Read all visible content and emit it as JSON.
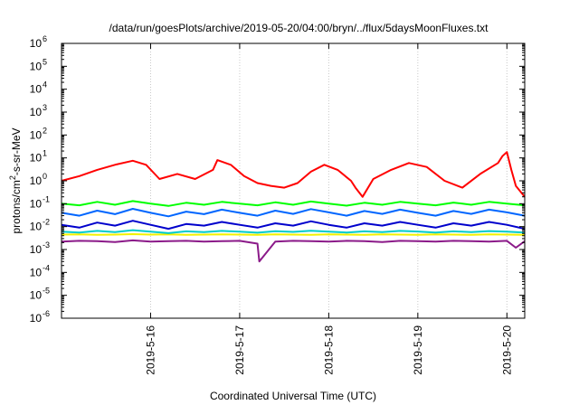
{
  "chart_data": {
    "type": "line",
    "title": "/data/run/goesPlots/archive/2019-05-20/04:00/bryn/../flux/5daysMoonFluxes.txt",
    "xlabel": "Coordinated Universal Time (UTC)",
    "ylabel": {
      "prefix": "protons/cm",
      "sup": "2",
      "suffix": "-s-sr-MeV"
    },
    "yscale": "log",
    "ylim_exp": [
      -6,
      6
    ],
    "y_ticks": [
      {
        "base": "10",
        "exp": "-6",
        "value": 1e-06
      },
      {
        "base": "10",
        "exp": "-5",
        "value": 1e-05
      },
      {
        "base": "10",
        "exp": "-4",
        "value": 0.0001
      },
      {
        "base": "10",
        "exp": "-3",
        "value": 0.001
      },
      {
        "base": "10",
        "exp": "-2",
        "value": 0.01
      },
      {
        "base": "10",
        "exp": "-1",
        "value": 0.1
      },
      {
        "base": "10",
        "exp": "0",
        "value": 1
      },
      {
        "base": "10",
        "exp": "1",
        "value": 10
      },
      {
        "base": "10",
        "exp": "2",
        "value": 100
      },
      {
        "base": "10",
        "exp": "3",
        "value": 1000
      },
      {
        "base": "10",
        "exp": "4",
        "value": 10000
      },
      {
        "base": "10",
        "exp": "5",
        "value": 100000
      },
      {
        "base": "10",
        "exp": "6",
        "value": 1000000
      }
    ],
    "x_ticks": [
      {
        "label": "2019-5-16",
        "day": 16
      },
      {
        "label": "2019-5-17",
        "day": 17
      },
      {
        "label": "2019-5-18",
        "day": 18
      },
      {
        "label": "2019-5-19",
        "day": 19
      },
      {
        "label": "2019-5-20",
        "day": 20
      }
    ],
    "xlim_days": [
      15.0,
      20.2
    ],
    "grid": true,
    "series": [
      {
        "color": "#8b1a89",
        "x": [
          15.0,
          15.2,
          15.4,
          15.6,
          15.8,
          16.0,
          16.2,
          16.4,
          16.6,
          16.8,
          17.0,
          17.2,
          17.22,
          17.4,
          17.6,
          17.8,
          18.0,
          18.2,
          18.4,
          18.6,
          18.8,
          19.0,
          19.2,
          19.4,
          19.6,
          19.8,
          20.0,
          20.1,
          20.2
        ],
        "y": [
          0.0022,
          0.0024,
          0.0023,
          0.0021,
          0.0025,
          0.0022,
          0.0023,
          0.0024,
          0.0022,
          0.0023,
          0.0024,
          0.0018,
          0.0003,
          0.0022,
          0.0024,
          0.0023,
          0.0022,
          0.0024,
          0.0023,
          0.0021,
          0.0024,
          0.0023,
          0.0022,
          0.0024,
          0.0023,
          0.0022,
          0.0024,
          0.0012,
          0.0023
        ]
      },
      {
        "color": "#f2f200",
        "x": [
          15.0,
          15.2,
          15.4,
          15.6,
          15.8,
          16.0,
          16.2,
          16.4,
          16.6,
          16.8,
          17.0,
          17.2,
          17.4,
          17.6,
          17.8,
          18.0,
          18.2,
          18.4,
          18.6,
          18.8,
          19.0,
          19.2,
          19.4,
          19.6,
          19.8,
          20.0,
          20.2
        ],
        "y": [
          0.0045,
          0.0046,
          0.0044,
          0.0045,
          0.0047,
          0.0045,
          0.0046,
          0.0044,
          0.0045,
          0.0046,
          0.0045,
          0.0044,
          0.0046,
          0.0045,
          0.0044,
          0.0046,
          0.0045,
          0.0044,
          0.0046,
          0.0045,
          0.0044,
          0.0046,
          0.0045,
          0.0044,
          0.0046,
          0.0045,
          0.0044
        ]
      },
      {
        "color": "#00cccc",
        "x": [
          15.0,
          15.2,
          15.4,
          15.6,
          15.8,
          16.0,
          16.2,
          16.4,
          16.6,
          16.8,
          17.0,
          17.2,
          17.4,
          17.6,
          17.8,
          18.0,
          18.2,
          18.4,
          18.6,
          18.8,
          19.0,
          19.2,
          19.4,
          19.6,
          19.8,
          20.0,
          20.2
        ],
        "y": [
          0.006,
          0.0055,
          0.0065,
          0.0058,
          0.007,
          0.006,
          0.0052,
          0.0062,
          0.0058,
          0.0065,
          0.006,
          0.0054,
          0.0063,
          0.0059,
          0.0066,
          0.006,
          0.0055,
          0.0062,
          0.0058,
          0.0065,
          0.0061,
          0.0055,
          0.0062,
          0.0058,
          0.0064,
          0.006,
          0.0055
        ]
      },
      {
        "color": "#0000cc",
        "x": [
          15.0,
          15.2,
          15.4,
          15.6,
          15.8,
          16.0,
          16.2,
          16.4,
          16.6,
          16.8,
          17.0,
          17.2,
          17.4,
          17.6,
          17.8,
          18.0,
          18.2,
          18.4,
          18.6,
          18.8,
          19.0,
          19.2,
          19.4,
          19.6,
          19.8,
          20.0,
          20.2
        ],
        "y": [
          0.012,
          0.009,
          0.015,
          0.011,
          0.018,
          0.012,
          0.008,
          0.013,
          0.011,
          0.016,
          0.012,
          0.009,
          0.014,
          0.011,
          0.017,
          0.012,
          0.009,
          0.014,
          0.011,
          0.016,
          0.012,
          0.009,
          0.014,
          0.011,
          0.016,
          0.012,
          0.008
        ]
      },
      {
        "color": "#0066ff",
        "x": [
          15.0,
          15.2,
          15.4,
          15.6,
          15.8,
          16.0,
          16.2,
          16.4,
          16.6,
          16.8,
          17.0,
          17.2,
          17.4,
          17.6,
          17.8,
          18.0,
          18.2,
          18.4,
          18.6,
          18.8,
          19.0,
          19.2,
          19.4,
          19.6,
          19.8,
          20.0,
          20.2
        ],
        "y": [
          0.04,
          0.03,
          0.05,
          0.035,
          0.06,
          0.04,
          0.028,
          0.045,
          0.035,
          0.055,
          0.04,
          0.03,
          0.05,
          0.036,
          0.058,
          0.042,
          0.03,
          0.048,
          0.036,
          0.055,
          0.04,
          0.03,
          0.048,
          0.036,
          0.055,
          0.042,
          0.03
        ]
      },
      {
        "color": "#00ff00",
        "x": [
          15.0,
          15.2,
          15.4,
          15.6,
          15.8,
          16.0,
          16.2,
          16.4,
          16.6,
          16.8,
          17.0,
          17.2,
          17.4,
          17.6,
          17.8,
          18.0,
          18.2,
          18.4,
          18.6,
          18.8,
          19.0,
          19.2,
          19.4,
          19.6,
          19.8,
          20.0,
          20.2
        ],
        "y": [
          0.1,
          0.085,
          0.12,
          0.09,
          0.13,
          0.1,
          0.08,
          0.11,
          0.09,
          0.12,
          0.1,
          0.085,
          0.115,
          0.09,
          0.125,
          0.1,
          0.082,
          0.11,
          0.09,
          0.12,
          0.1,
          0.085,
          0.112,
          0.09,
          0.12,
          0.1,
          0.085
        ]
      },
      {
        "color": "#ff0000",
        "x": [
          15.0,
          15.2,
          15.4,
          15.6,
          15.8,
          15.95,
          16.1,
          16.3,
          16.5,
          16.7,
          16.75,
          16.9,
          17.05,
          17.2,
          17.35,
          17.5,
          17.65,
          17.8,
          17.95,
          18.1,
          18.25,
          18.3,
          18.38,
          18.5,
          18.7,
          18.9,
          19.1,
          19.3,
          19.5,
          19.7,
          19.9,
          19.95,
          20.0,
          20.05,
          20.1,
          20.2
        ],
        "y": [
          1.0,
          1.6,
          3.0,
          5.0,
          7.5,
          5.0,
          1.2,
          2.0,
          1.2,
          3.0,
          8.0,
          5.0,
          1.6,
          0.8,
          0.6,
          0.5,
          0.8,
          2.5,
          5.0,
          3.0,
          1.0,
          0.5,
          0.2,
          1.2,
          3.0,
          6.0,
          4.0,
          1.0,
          0.5,
          2.0,
          6.0,
          12.0,
          18.0,
          3.0,
          0.6,
          0.2
        ]
      }
    ]
  }
}
